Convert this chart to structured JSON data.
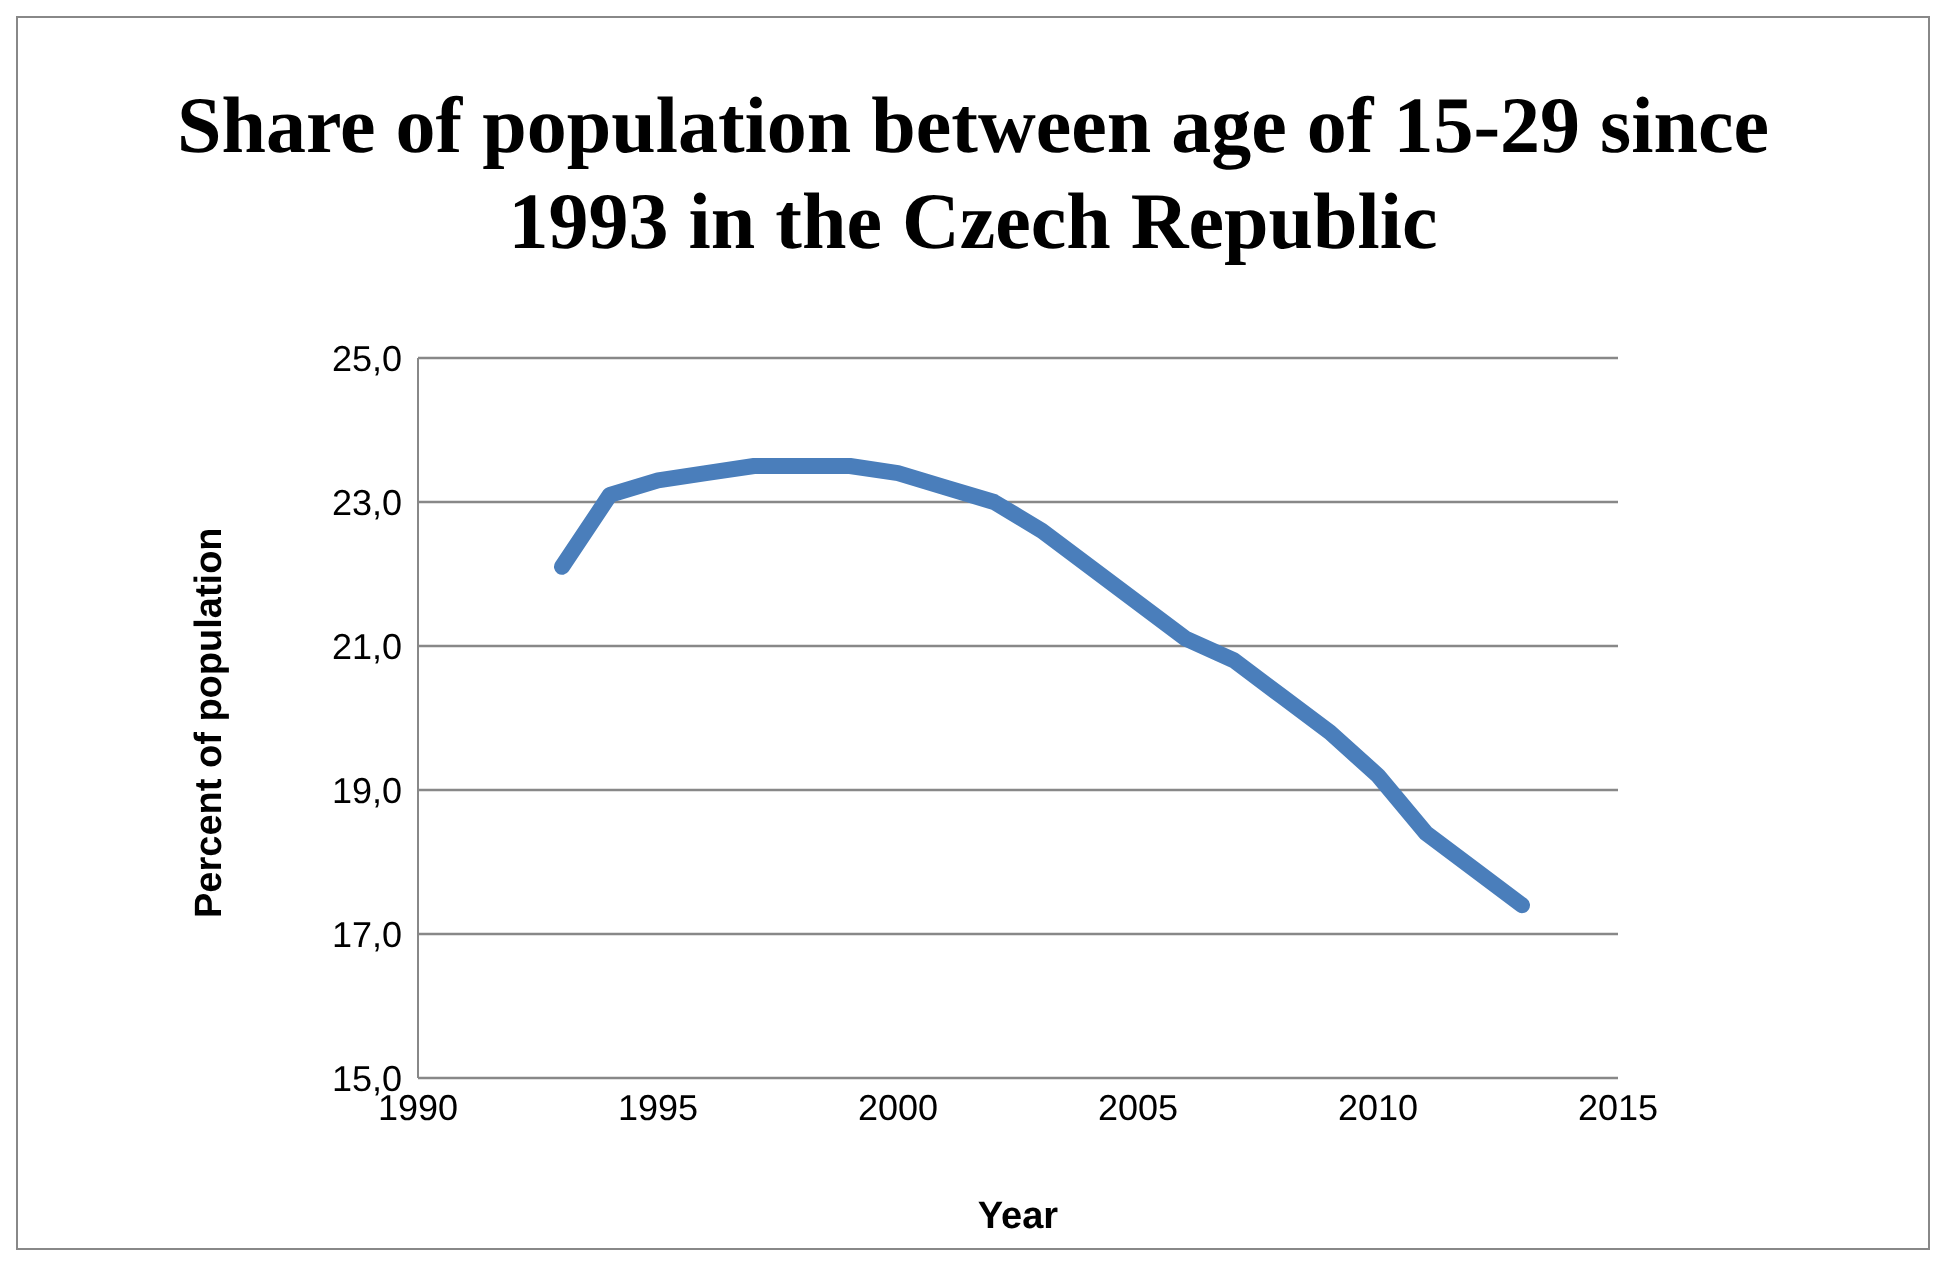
{
  "chart_data": {
    "type": "line",
    "title": "Share of population between age of 15-29 since 1993 in the Czech Republic",
    "xlabel": "Year",
    "ylabel": "Percent of population",
    "x": [
      1993,
      1994,
      1995,
      1996,
      1997,
      1998,
      1999,
      2000,
      2001,
      2002,
      2003,
      2004,
      2005,
      2006,
      2007,
      2008,
      2009,
      2010,
      2011,
      2012,
      2013
    ],
    "series": [
      {
        "color": "#4a7ebb",
        "values": [
          22.1,
          23.1,
          23.3,
          23.4,
          23.5,
          23.5,
          23.5,
          23.4,
          23.2,
          23.0,
          22.6,
          22.1,
          21.6,
          21.1,
          20.8,
          20.3,
          19.8,
          19.2,
          18.4,
          17.9,
          17.4
        ]
      }
    ],
    "xlim": [
      1990,
      2015
    ],
    "xticks": [
      1990,
      1995,
      2000,
      2005,
      2010,
      2015
    ],
    "ylim": [
      15,
      25
    ],
    "yticks": [
      {
        "value": 15,
        "label": "15,0"
      },
      {
        "value": 17,
        "label": "17,0"
      },
      {
        "value": 19,
        "label": "19,0"
      },
      {
        "value": 21,
        "label": "21,0"
      },
      {
        "value": 23,
        "label": "23,0"
      },
      {
        "value": 25,
        "label": "25,0"
      }
    ],
    "grid": "y",
    "marker": "none",
    "line_style": "solid"
  }
}
